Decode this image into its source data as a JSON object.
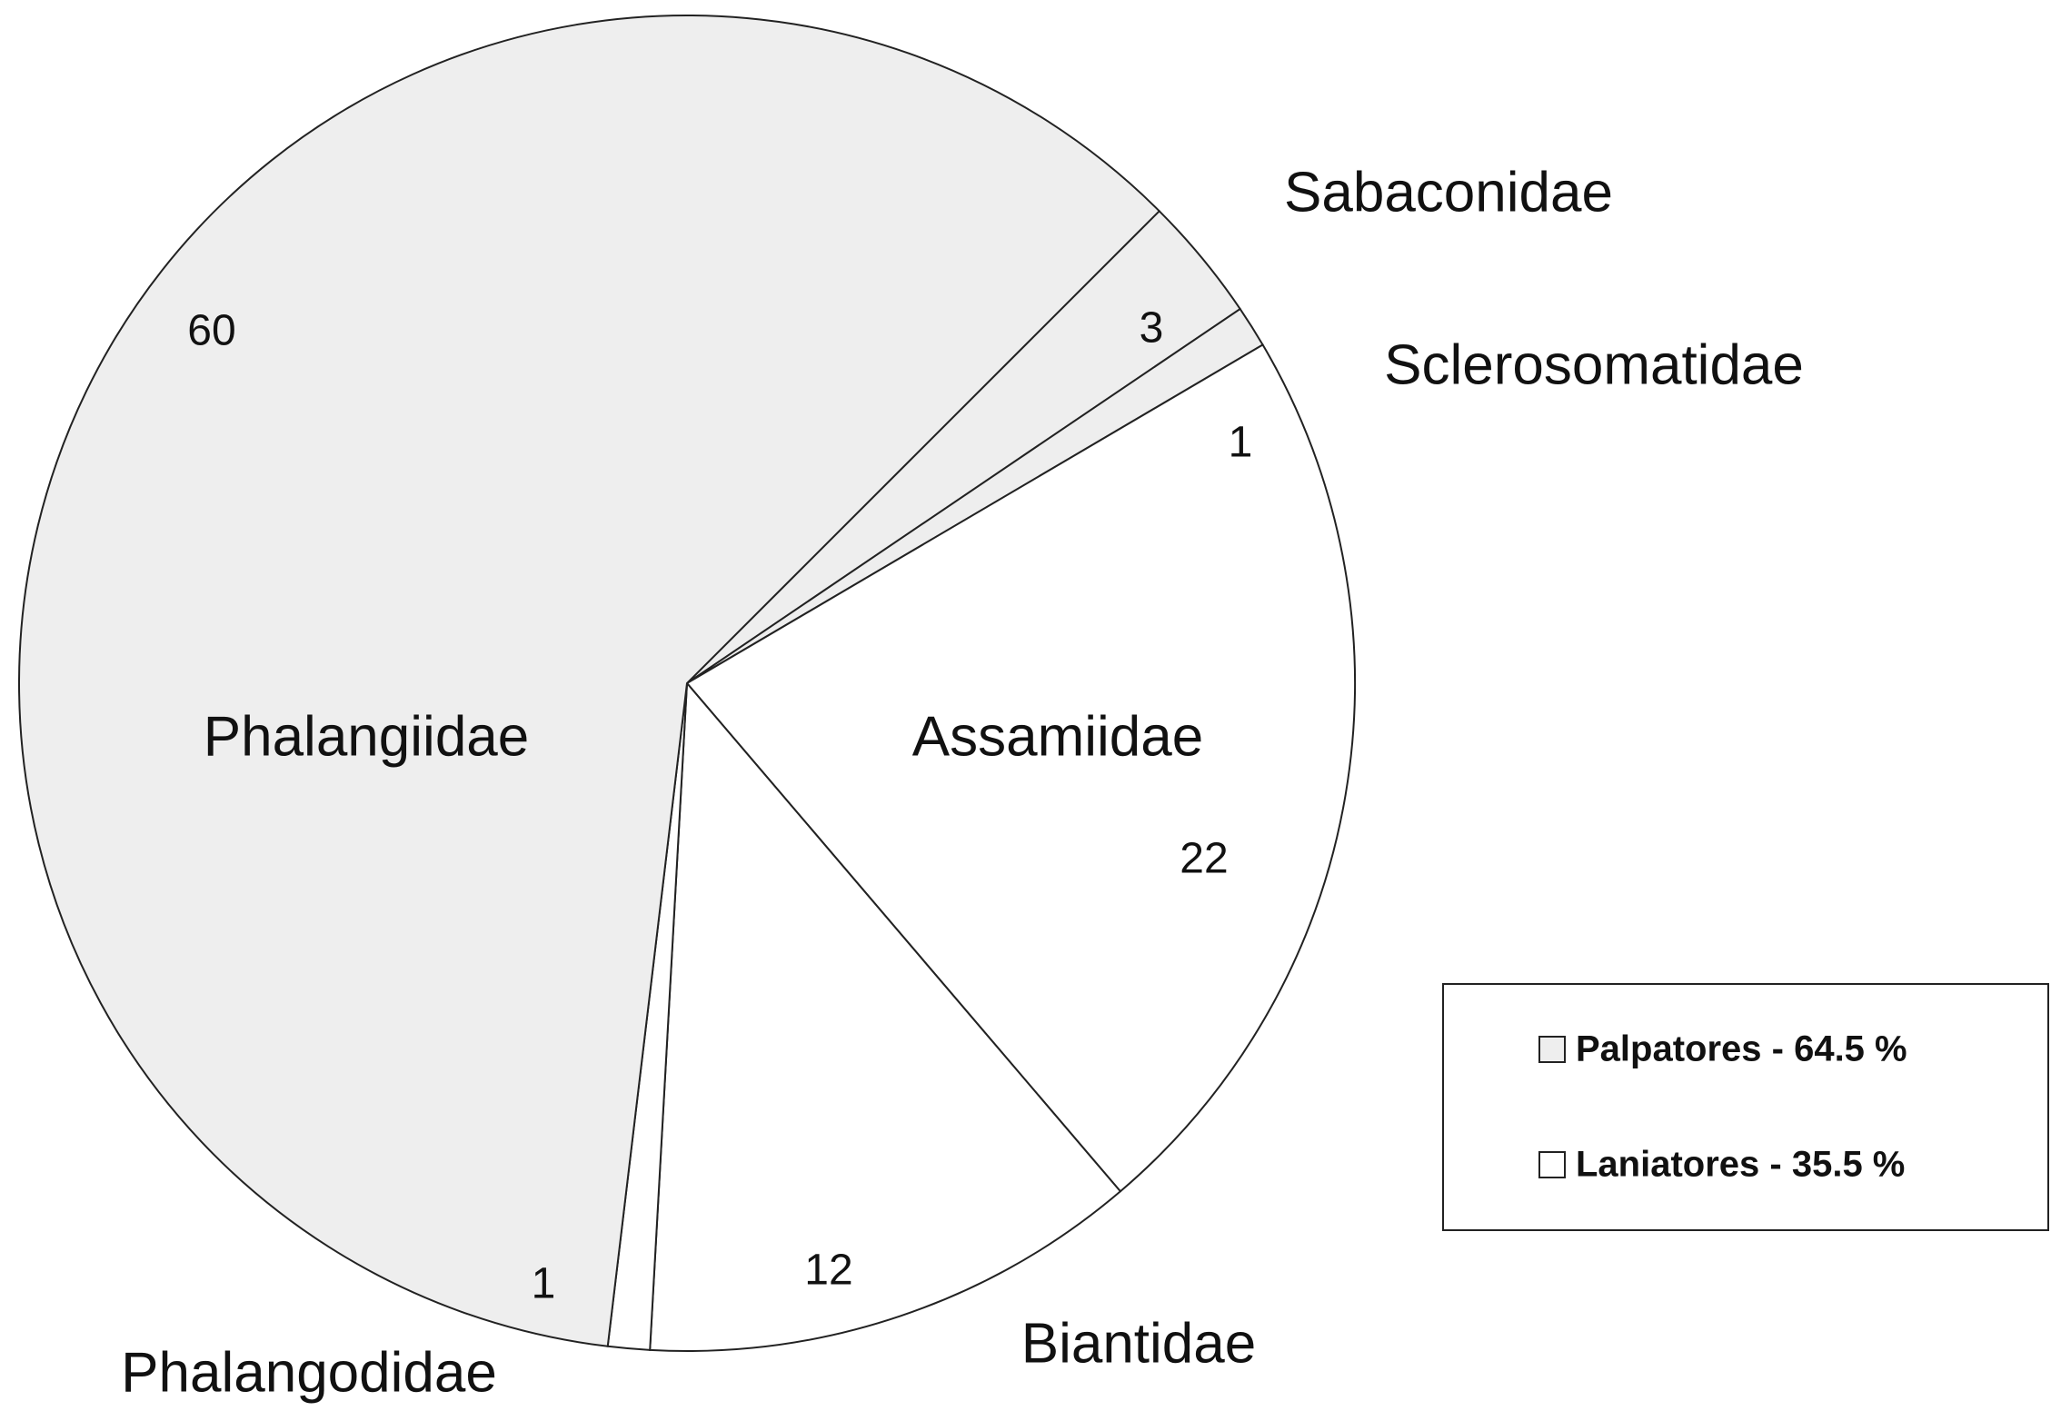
{
  "chart_data": {
    "type": "pie",
    "categories": [
      "Sabaconidae",
      "Sclerosomatidae",
      "Assamiidae",
      "Biantidae",
      "Phalangodidae",
      "Phalangiidae"
    ],
    "values": [
      3,
      1,
      22,
      12,
      1,
      60
    ],
    "colors": [
      "#eeeeee",
      "#eeeeee",
      "#ffffff",
      "#ffffff",
      "#ffffff",
      "#eeeeee"
    ],
    "legend": [
      {
        "label": "Palpatores - 64.5 %",
        "color": "#eeeeee"
      },
      {
        "label": "Laniatores - 35.5 %",
        "color": "#ffffff"
      }
    ]
  }
}
